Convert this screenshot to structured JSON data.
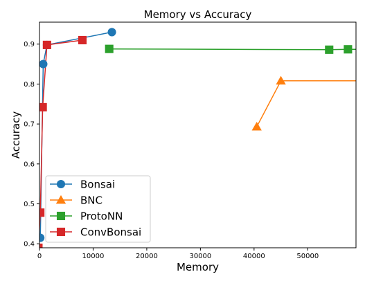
{
  "chart_data": {
    "type": "line",
    "title": "Memory vs Accuracy",
    "xlabel": "Memory",
    "ylabel": "Accuracy",
    "xlim": [
      0,
      59000
    ],
    "ylim": [
      0.39,
      0.955
    ],
    "xticks": [
      0,
      10000,
      20000,
      30000,
      40000,
      50000
    ],
    "xtick_labels": [
      "0",
      "10000",
      "20000",
      "30000",
      "40000",
      "50000"
    ],
    "yticks": [
      0.4,
      0.5,
      0.6,
      0.7,
      0.8,
      0.9
    ],
    "ytick_labels": [
      "0.4",
      "0.5",
      "0.6",
      "0.7",
      "0.8",
      "0.9"
    ],
    "grid": false,
    "legend": "lower-left",
    "series": [
      {
        "name": "Bonsai",
        "color": "#1f77b4",
        "marker": "circle",
        "points": [
          [
            150,
            0.415
          ],
          [
            700,
            0.85
          ],
          [
            1400,
            0.898
          ],
          [
            13500,
            0.93
          ]
        ]
      },
      {
        "name": "BNC",
        "color": "#ff7f0e",
        "marker": "triangle",
        "points": [
          [
            40500,
            0.693
          ],
          [
            45000,
            0.808
          ],
          [
            62000,
            0.808
          ]
        ]
      },
      {
        "name": "ProtoNN",
        "color": "#2ca02c",
        "marker": "square",
        "points": [
          [
            13000,
            0.888
          ],
          [
            54000,
            0.886
          ],
          [
            57500,
            0.887
          ],
          [
            62000,
            0.887
          ]
        ]
      },
      {
        "name": "ConvBonsai",
        "color": "#d62728",
        "marker": "square",
        "points": [
          [
            -200,
            0.39
          ],
          [
            150,
            0.478
          ],
          [
            600,
            0.742
          ],
          [
            1400,
            0.898
          ],
          [
            8000,
            0.91
          ]
        ]
      }
    ]
  }
}
